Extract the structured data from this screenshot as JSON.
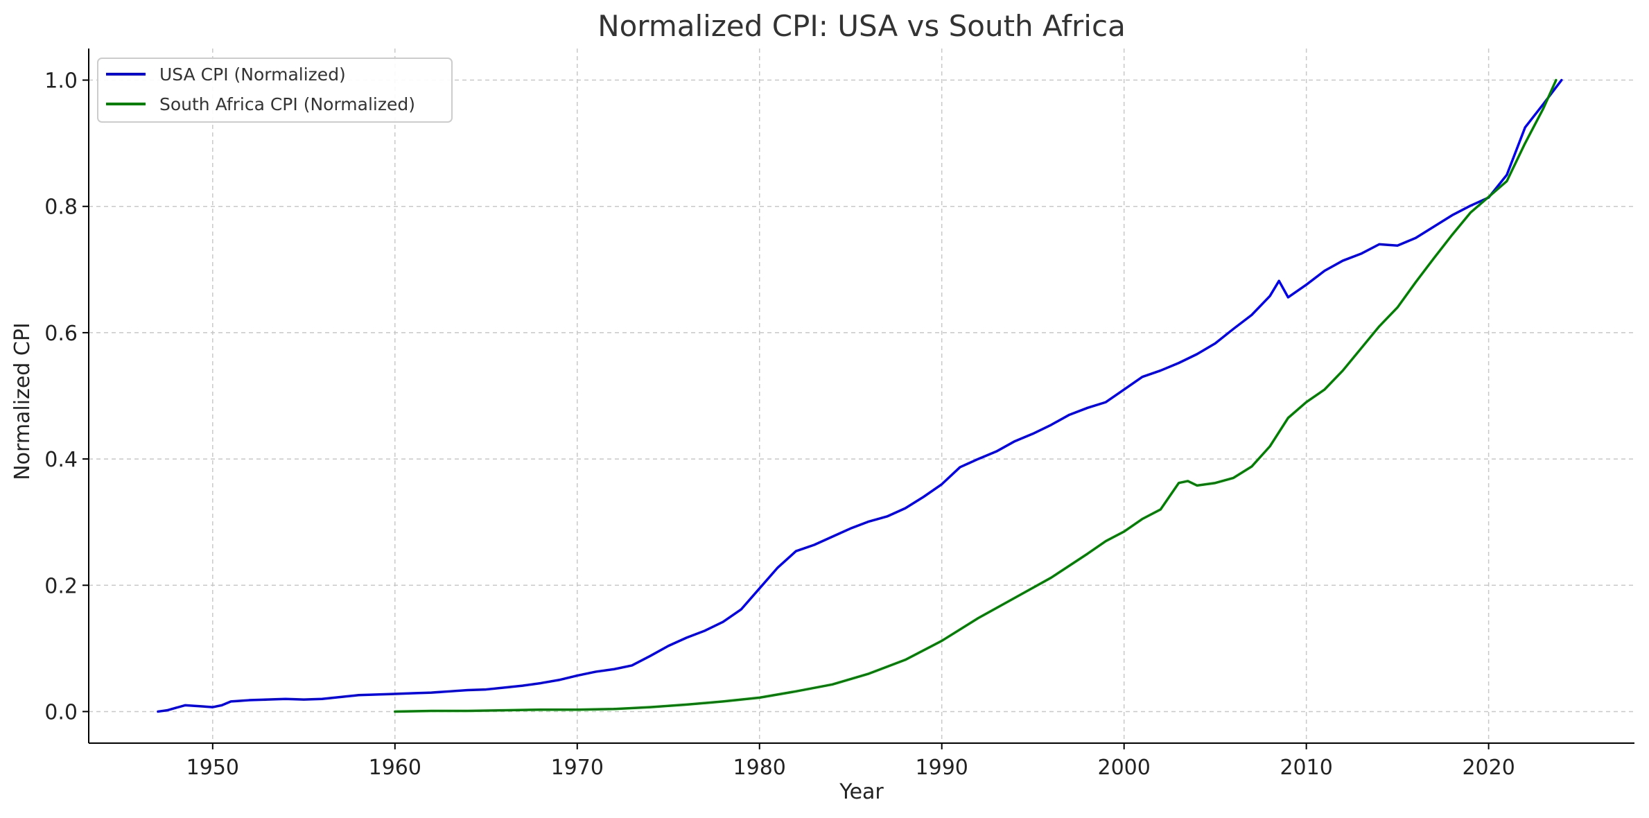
{
  "chart_data": {
    "type": "line",
    "title": "Normalized CPI: USA vs South Africa",
    "xlabel": "Year",
    "ylabel": "Normalized CPI",
    "xlim": [
      1943.2,
      2028.0
    ],
    "ylim": [
      -0.05,
      1.05
    ],
    "xticks": [
      1950,
      1960,
      1970,
      1980,
      1990,
      2000,
      2010,
      2020
    ],
    "yticks": [
      0.0,
      0.2,
      0.4,
      0.6,
      0.8,
      1.0
    ],
    "ytick_labels": [
      "0.0",
      "0.2",
      "0.4",
      "0.6",
      "0.8",
      "1.0"
    ],
    "grid": true,
    "legend_position": "top-left",
    "series": [
      {
        "name": "USA CPI (Normalized)",
        "color": "#0000ee",
        "points": [
          [
            1947.0,
            0.0
          ],
          [
            1947.5,
            0.002
          ],
          [
            1948.0,
            0.006
          ],
          [
            1948.5,
            0.01
          ],
          [
            1949.0,
            0.009
          ],
          [
            1949.5,
            0.008
          ],
          [
            1950.0,
            0.007
          ],
          [
            1950.5,
            0.01
          ],
          [
            1951.0,
            0.016
          ],
          [
            1951.5,
            0.017
          ],
          [
            1952.0,
            0.018
          ],
          [
            1953.0,
            0.019
          ],
          [
            1954.0,
            0.02
          ],
          [
            1955.0,
            0.019
          ],
          [
            1956.0,
            0.02
          ],
          [
            1957.0,
            0.023
          ],
          [
            1958.0,
            0.026
          ],
          [
            1959.0,
            0.027
          ],
          [
            1960.0,
            0.028
          ],
          [
            1961.0,
            0.029
          ],
          [
            1962.0,
            0.03
          ],
          [
            1963.0,
            0.032
          ],
          [
            1964.0,
            0.034
          ],
          [
            1965.0,
            0.035
          ],
          [
            1966.0,
            0.038
          ],
          [
            1967.0,
            0.041
          ],
          [
            1968.0,
            0.045
          ],
          [
            1969.0,
            0.05
          ],
          [
            1970.0,
            0.057
          ],
          [
            1971.0,
            0.063
          ],
          [
            1972.0,
            0.067
          ],
          [
            1973.0,
            0.073
          ],
          [
            1974.0,
            0.088
          ],
          [
            1975.0,
            0.104
          ],
          [
            1976.0,
            0.117
          ],
          [
            1977.0,
            0.128
          ],
          [
            1978.0,
            0.142
          ],
          [
            1979.0,
            0.162
          ],
          [
            1980.0,
            0.195
          ],
          [
            1981.0,
            0.228
          ],
          [
            1982.0,
            0.254
          ],
          [
            1983.0,
            0.264
          ],
          [
            1984.0,
            0.277
          ],
          [
            1985.0,
            0.29
          ],
          [
            1986.0,
            0.301
          ],
          [
            1987.0,
            0.309
          ],
          [
            1988.0,
            0.322
          ],
          [
            1989.0,
            0.34
          ],
          [
            1990.0,
            0.36
          ],
          [
            1991.0,
            0.387
          ],
          [
            1992.0,
            0.4
          ],
          [
            1993.0,
            0.412
          ],
          [
            1994.0,
            0.428
          ],
          [
            1995.0,
            0.44
          ],
          [
            1996.0,
            0.454
          ],
          [
            1997.0,
            0.47
          ],
          [
            1998.0,
            0.481
          ],
          [
            1999.0,
            0.49
          ],
          [
            2000.0,
            0.51
          ],
          [
            2001.0,
            0.53
          ],
          [
            2002.0,
            0.54
          ],
          [
            2003.0,
            0.552
          ],
          [
            2004.0,
            0.566
          ],
          [
            2005.0,
            0.583
          ],
          [
            2006.0,
            0.606
          ],
          [
            2007.0,
            0.628
          ],
          [
            2008.0,
            0.658
          ],
          [
            2008.5,
            0.682
          ],
          [
            2009.0,
            0.656
          ],
          [
            2010.0,
            0.676
          ],
          [
            2011.0,
            0.698
          ],
          [
            2012.0,
            0.714
          ],
          [
            2013.0,
            0.725
          ],
          [
            2014.0,
            0.74
          ],
          [
            2015.0,
            0.738
          ],
          [
            2016.0,
            0.75
          ],
          [
            2017.0,
            0.768
          ],
          [
            2018.0,
            0.786
          ],
          [
            2019.0,
            0.801
          ],
          [
            2020.0,
            0.814
          ],
          [
            2021.0,
            0.85
          ],
          [
            2022.0,
            0.925
          ],
          [
            2023.0,
            0.962
          ],
          [
            2024.0,
            1.0
          ]
        ]
      },
      {
        "name": "South Africa CPI (Normalized)",
        "color": "#008000",
        "points": [
          [
            1960.0,
            0.0
          ],
          [
            1962.0,
            0.001
          ],
          [
            1964.0,
            0.001
          ],
          [
            1966.0,
            0.002
          ],
          [
            1968.0,
            0.003
          ],
          [
            1970.0,
            0.003
          ],
          [
            1972.0,
            0.004
          ],
          [
            1974.0,
            0.007
          ],
          [
            1976.0,
            0.011
          ],
          [
            1978.0,
            0.016
          ],
          [
            1980.0,
            0.022
          ],
          [
            1982.0,
            0.032
          ],
          [
            1984.0,
            0.043
          ],
          [
            1986.0,
            0.06
          ],
          [
            1988.0,
            0.082
          ],
          [
            1990.0,
            0.112
          ],
          [
            1992.0,
            0.148
          ],
          [
            1994.0,
            0.18
          ],
          [
            1996.0,
            0.212
          ],
          [
            1998.0,
            0.25
          ],
          [
            1999.0,
            0.27
          ],
          [
            2000.0,
            0.285
          ],
          [
            2001.0,
            0.305
          ],
          [
            2002.0,
            0.32
          ],
          [
            2003.0,
            0.362
          ],
          [
            2003.5,
            0.365
          ],
          [
            2004.0,
            0.358
          ],
          [
            2005.0,
            0.362
          ],
          [
            2006.0,
            0.37
          ],
          [
            2007.0,
            0.388
          ],
          [
            2008.0,
            0.42
          ],
          [
            2009.0,
            0.465
          ],
          [
            2010.0,
            0.49
          ],
          [
            2011.0,
            0.51
          ],
          [
            2012.0,
            0.54
          ],
          [
            2013.0,
            0.575
          ],
          [
            2014.0,
            0.61
          ],
          [
            2015.0,
            0.64
          ],
          [
            2016.0,
            0.68
          ],
          [
            2017.0,
            0.718
          ],
          [
            2018.0,
            0.755
          ],
          [
            2019.0,
            0.79
          ],
          [
            2020.0,
            0.815
          ],
          [
            2021.0,
            0.84
          ],
          [
            2022.0,
            0.9
          ],
          [
            2023.0,
            0.955
          ],
          [
            2023.7,
            1.0
          ]
        ]
      }
    ]
  }
}
